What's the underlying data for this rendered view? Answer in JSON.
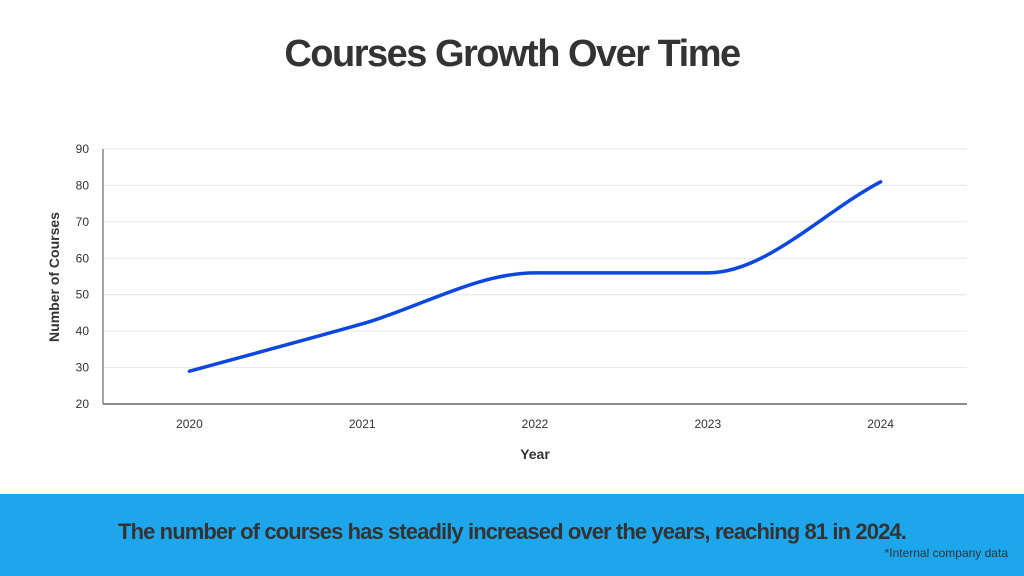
{
  "title": "Courses Growth Over Time",
  "footer": {
    "summary": "The number of courses has steadily increased over the years, reaching 81 in 2024.",
    "note": "*Internal company data"
  },
  "colors": {
    "line": "#0d47e0",
    "band": "#1ea6ec",
    "text": "#333333",
    "grid": "#e6e6e6",
    "axis": "#666666"
  },
  "chart_data": {
    "type": "line",
    "categories": [
      "2020",
      "2021",
      "2022",
      "2023",
      "2024"
    ],
    "series": [
      {
        "values": [
          29,
          42,
          56,
          56,
          81
        ]
      }
    ],
    "xlabel": "Year",
    "ylabel": "Number of Courses",
    "ylim": [
      20,
      90
    ],
    "yticks": [
      20,
      30,
      40,
      50,
      60,
      70,
      80,
      90
    ],
    "grid": true,
    "smooth": true
  }
}
